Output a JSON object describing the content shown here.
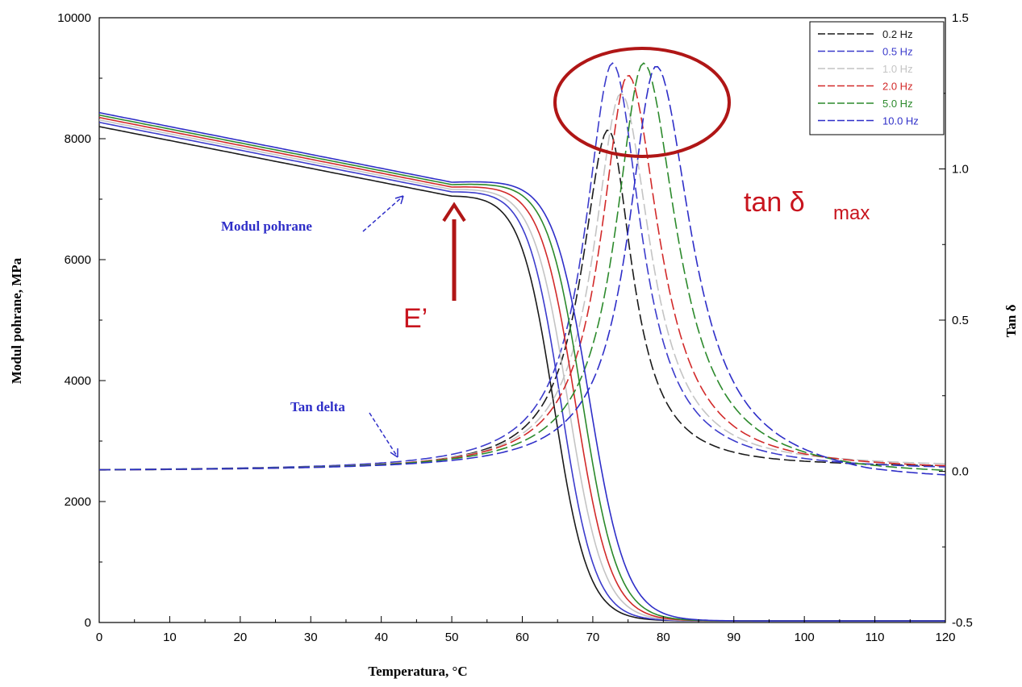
{
  "chart_data": {
    "type": "line",
    "xlabel": "Temperatura, °C",
    "ylabel": "Modul pohrane, MPa",
    "ylabel_right": "Tan δ",
    "xlim": [
      0,
      120
    ],
    "ylim": [
      0,
      10000
    ],
    "ylim_right": [
      -0.5,
      1.5
    ],
    "x_ticks": [
      0,
      10,
      20,
      30,
      40,
      50,
      60,
      70,
      80,
      90,
      100,
      110,
      120
    ],
    "y_ticks": [
      0,
      2000,
      4000,
      6000,
      8000,
      10000
    ],
    "y_ticks_right": [
      "-0.5",
      "",
      "0.0",
      "",
      "0.5",
      "",
      "1.0",
      "",
      "1.5"
    ],
    "legend_position": "top-right",
    "annotations": {
      "storage_modulus": "Modul pohrane",
      "tan_delta": "Tan delta",
      "e_prime": "E’",
      "tan_delta_max_prefix": "tan δ",
      "tan_delta_max_sub": "max"
    },
    "series": [
      {
        "name": "0.2 Hz",
        "color": "#1a1a1a",
        "modulus_knee": 7050,
        "modulus_t50": 64.5,
        "modulus_w": 2.4,
        "tan_peak_x": 72.2,
        "tan_peak_y": 1.13,
        "tan_wl": 5.8,
        "tan_wr": 5.2,
        "tan_end": 0.01
      },
      {
        "name": "0.5 Hz",
        "color": "#3c3ccc",
        "modulus_knee": 7120,
        "modulus_t50": 65.5,
        "modulus_w": 2.4,
        "tan_peak_x": 72.8,
        "tan_peak_y": 1.35,
        "tan_wl": 6.0,
        "tan_wr": 6.2,
        "tan_end": 0.0
      },
      {
        "name": "1.0 Hz",
        "color": "#c4c4c4",
        "modulus_knee": 7160,
        "modulus_t50": 66.5,
        "modulus_w": 2.5,
        "tan_peak_x": 74.0,
        "tan_peak_y": 1.25,
        "tan_wl": 5.9,
        "tan_wr": 6.4,
        "tan_end": 0.01
      },
      {
        "name": "2.0 Hz",
        "color": "#d22a2a",
        "modulus_knee": 7200,
        "modulus_t50": 67.5,
        "modulus_w": 2.5,
        "tan_peak_x": 75.0,
        "tan_peak_y": 1.31,
        "tan_wl": 5.9,
        "tan_wr": 6.8,
        "tan_end": 0.0
      },
      {
        "name": "5.0 Hz",
        "color": "#2c8a2c",
        "modulus_knee": 7240,
        "modulus_t50": 68.5,
        "modulus_w": 2.5,
        "tan_peak_x": 77.2,
        "tan_peak_y": 1.35,
        "tan_wl": 6.1,
        "tan_wr": 7.2,
        "tan_end": -0.02
      },
      {
        "name": "10.0 Hz",
        "color": "#2e2ec8",
        "modulus_knee": 7280,
        "modulus_t50": 69.5,
        "modulus_w": 2.6,
        "tan_peak_x": 79.0,
        "tan_peak_y": 1.34,
        "tan_wl": 6.1,
        "tan_wr": 7.6,
        "tan_end": -0.04
      }
    ]
  }
}
